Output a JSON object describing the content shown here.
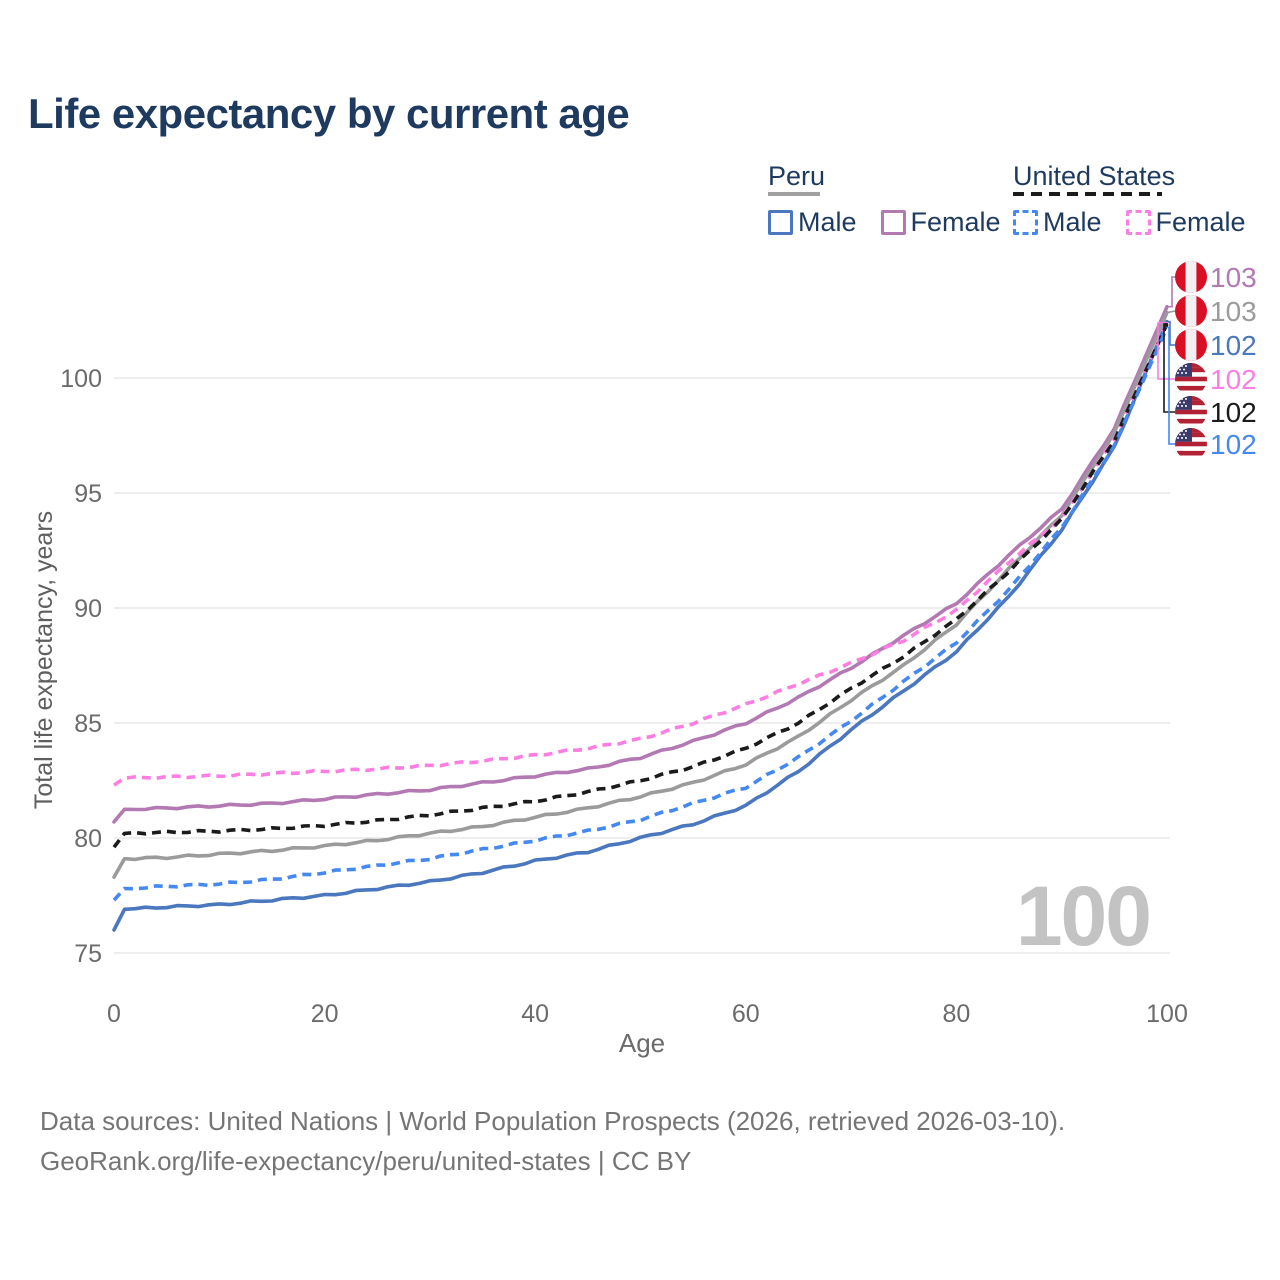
{
  "title": "Life expectancy by current age",
  "legend": {
    "peru": {
      "label": "Peru",
      "male": "Male",
      "female": "Female"
    },
    "united_states": {
      "label": "United States",
      "male": "Male",
      "female": "Female"
    }
  },
  "axes": {
    "y_title": "Total life expectancy, years",
    "x_title": "Age",
    "y_ticks": [
      75,
      80,
      85,
      90,
      95,
      100
    ],
    "x_ticks": [
      0,
      20,
      40,
      60,
      80,
      100
    ]
  },
  "watermark": "100",
  "footer": {
    "line1": "Data sources: United Nations | World Population Prospects (2026, retrieved 2026-03-10).",
    "line2": "GeoRank.org/life-expectancy/peru/united-states | CC BY"
  },
  "colors": {
    "title": "#1e3a5f",
    "peru_male": "#4a77bd",
    "peru_female": "#b279b2",
    "peru_total": "#9b9b9b",
    "us_male": "#4488f0",
    "us_female": "#fb7ee0",
    "us_total": "#1b1b1b",
    "grid": "#e9e9e9",
    "tick_text": "#6b6b6b",
    "axis_title_text": "#5f5f5f",
    "watermark": "#c3c3c3",
    "footer_text": "#757575",
    "peru_flag_red": "#d91023",
    "us_flag_red": "#b22234",
    "us_flag_blue": "#3c3b6e"
  },
  "chart_data": {
    "type": "line",
    "title": "Life expectancy by current age",
    "xlabel": "Age",
    "ylabel": "Total life expectancy, years",
    "xlim": [
      0,
      100
    ],
    "ylim": [
      75,
      103.5
    ],
    "grid": "horizontal",
    "legend_position": "top-right",
    "x": [
      0,
      1,
      5,
      10,
      15,
      20,
      25,
      30,
      35,
      40,
      45,
      50,
      55,
      60,
      65,
      70,
      75,
      80,
      85,
      90,
      95,
      100
    ],
    "series": [
      {
        "key": "peru_female",
        "name": "Peru Female",
        "country": "Peru",
        "sex": "Female",
        "style": "solid",
        "color": "#b279b2",
        "values": [
          80.7,
          81.25,
          81.3,
          81.4,
          81.5,
          81.7,
          81.9,
          82.1,
          82.4,
          82.7,
          83.0,
          83.5,
          84.2,
          85.0,
          86.1,
          87.4,
          88.8,
          90.2,
          92.3,
          94.3,
          97.8,
          103.1
        ]
      },
      {
        "key": "peru_total",
        "name": "Peru Both sexes",
        "country": "Peru",
        "sex": "Both",
        "style": "solid",
        "color": "#9b9b9b",
        "values": [
          78.3,
          79.1,
          79.15,
          79.3,
          79.45,
          79.65,
          79.9,
          80.2,
          80.5,
          80.9,
          81.3,
          81.8,
          82.4,
          83.2,
          84.4,
          86.0,
          87.5,
          89.3,
          91.7,
          94.05,
          97.6,
          102.85
        ]
      },
      {
        "key": "peru_male",
        "name": "Peru Male",
        "country": "Peru",
        "sex": "Male",
        "style": "solid",
        "color": "#4a77bd",
        "values": [
          76.0,
          76.9,
          77.0,
          77.1,
          77.3,
          77.5,
          77.8,
          78.1,
          78.5,
          79.0,
          79.4,
          80.0,
          80.6,
          81.4,
          82.9,
          84.7,
          86.4,
          88.1,
          90.5,
          93.4,
          97.0,
          102.45
        ]
      },
      {
        "key": "us_female",
        "name": "United States Female",
        "country": "United States",
        "sex": "Female",
        "style": "dashed",
        "color": "#fb7ee0",
        "values": [
          82.3,
          82.6,
          82.65,
          82.7,
          82.8,
          82.9,
          83.0,
          83.15,
          83.35,
          83.6,
          83.9,
          84.3,
          85.0,
          85.8,
          86.7,
          87.6,
          88.6,
          89.9,
          92.0,
          93.9,
          97.35,
          102.4
        ]
      },
      {
        "key": "us_total",
        "name": "United States Both sexes",
        "country": "United States",
        "sex": "Both",
        "style": "dashed",
        "color": "#1b1b1b",
        "values": [
          79.6,
          80.2,
          80.25,
          80.3,
          80.4,
          80.55,
          80.75,
          81.0,
          81.3,
          81.6,
          82.0,
          82.5,
          83.1,
          83.9,
          85.0,
          86.5,
          87.9,
          89.5,
          91.6,
          93.85,
          97.3,
          102.35
        ]
      },
      {
        "key": "us_male",
        "name": "United States Male",
        "country": "United States",
        "sex": "Male",
        "style": "dashed",
        "color": "#4488f0",
        "values": [
          77.3,
          77.8,
          77.9,
          78.0,
          78.2,
          78.5,
          78.8,
          79.1,
          79.5,
          79.9,
          80.3,
          80.8,
          81.5,
          82.2,
          83.5,
          85.1,
          86.8,
          88.5,
          90.8,
          93.5,
          97.05,
          102.2
        ]
      }
    ]
  },
  "end_labels": [
    {
      "series": "peru_female",
      "flag": "peru",
      "value": "103"
    },
    {
      "series": "peru_total",
      "flag": "peru",
      "value": "103"
    },
    {
      "series": "peru_male",
      "flag": "peru",
      "value": "102"
    },
    {
      "series": "us_female",
      "flag": "us",
      "value": "102"
    },
    {
      "series": "us_total",
      "flag": "us",
      "value": "102"
    },
    {
      "series": "us_male",
      "flag": "us",
      "value": "102"
    }
  ]
}
